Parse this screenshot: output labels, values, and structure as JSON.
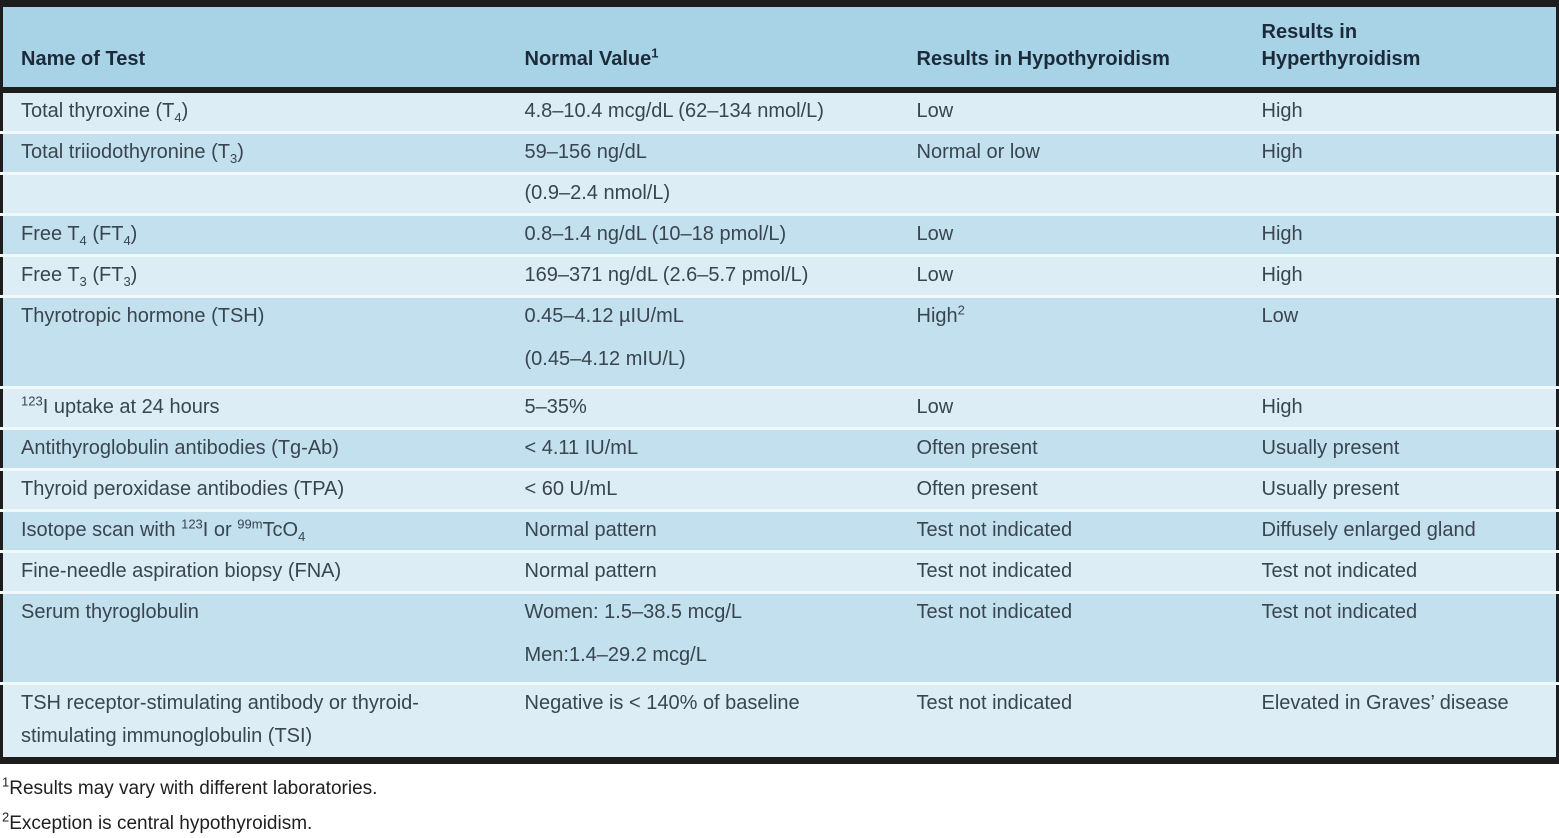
{
  "colors": {
    "header_bg": "#a8d2e6",
    "row_dark": "#c3e0ef",
    "row_light": "#dcedf6",
    "rule_black": "#1d1d1d",
    "row_separator": "#f2f9fc",
    "header_text": "#1c2b3a",
    "body_text": "#39454f"
  },
  "table": {
    "columns": [
      [
        "Name of Test"
      ],
      [
        "Normal Value^{1}"
      ],
      [
        "Results in Hypothyroidism"
      ],
      [
        "Results in",
        "Hyperthyroidism"
      ]
    ],
    "rows": [
      {
        "shade": "light",
        "tall": false,
        "cells": [
          [
            "Total thyroxine (T_{4})"
          ],
          [
            "4.8–10.4 mcg/dL (62–134 nmol/L)"
          ],
          [
            "Low"
          ],
          [
            "High"
          ]
        ]
      },
      {
        "shade": "dark",
        "tall": false,
        "cells": [
          [
            "Total triiodothyronine (T_{3})"
          ],
          [
            "59–156 ng/dL"
          ],
          [
            "Normal or low"
          ],
          [
            "High"
          ]
        ]
      },
      {
        "shade": "light",
        "tall": false,
        "cells": [
          [
            ""
          ],
          [
            "(0.9–2.4 nmol/L)"
          ],
          [
            ""
          ],
          [
            ""
          ]
        ]
      },
      {
        "shade": "dark",
        "tall": false,
        "cells": [
          [
            "Free T_{4} (FT_{4})"
          ],
          [
            "0.8–1.4 ng/dL (10–18 pmol/L)"
          ],
          [
            "Low"
          ],
          [
            "High"
          ]
        ]
      },
      {
        "shade": "light",
        "tall": false,
        "cells": [
          [
            "Free T_{3} (FT_{3})"
          ],
          [
            "169–371 ng/dL (2.6–5.7 pmol/L)"
          ],
          [
            "Low"
          ],
          [
            "High"
          ]
        ]
      },
      {
        "shade": "dark",
        "tall": true,
        "cells": [
          [
            "Thyrotropic hormone (TSH)"
          ],
          [
            "0.45–4.12 µIU/mL",
            "(0.45–4.12 mIU/L)"
          ],
          [
            "High^{2}"
          ],
          [
            "Low"
          ]
        ]
      },
      {
        "shade": "light",
        "tall": false,
        "cells": [
          [
            "^{123}I uptake at 24 hours"
          ],
          [
            "5–35%"
          ],
          [
            "Low"
          ],
          [
            "High"
          ]
        ]
      },
      {
        "shade": "dark",
        "tall": false,
        "cells": [
          [
            "Antithyroglobulin antibodies (Tg-Ab)"
          ],
          [
            "< 4.11 IU/mL"
          ],
          [
            "Often present"
          ],
          [
            "Usually present"
          ]
        ]
      },
      {
        "shade": "light",
        "tall": false,
        "cells": [
          [
            "Thyroid peroxidase antibodies (TPA)"
          ],
          [
            "< 60 U/mL"
          ],
          [
            "Often present"
          ],
          [
            "Usually present"
          ]
        ]
      },
      {
        "shade": "dark",
        "tall": false,
        "cells": [
          [
            "Isotope scan with ^{123}I or ^{99m}TcO_{4}"
          ],
          [
            "Normal pattern"
          ],
          [
            "Test not indicated"
          ],
          [
            "Diffusely enlarged gland"
          ]
        ]
      },
      {
        "shade": "light",
        "tall": false,
        "cells": [
          [
            "Fine-needle aspiration biopsy (FNA)"
          ],
          [
            "Normal pattern"
          ],
          [
            "Test not indicated"
          ],
          [
            "Test not indicated"
          ]
        ]
      },
      {
        "shade": "dark",
        "tall": true,
        "cells": [
          [
            "Serum thyroglobulin"
          ],
          [
            "Women: 1.5–38.5 mcg/L",
            "Men:1.4–29.2 mcg/L"
          ],
          [
            "Test not indicated"
          ],
          [
            "Test not indicated"
          ]
        ]
      },
      {
        "shade": "light",
        "tall": false,
        "cells": [
          [
            "TSH receptor-stimulating antibody or thyroid-",
            "stimulating immunoglobulin (TSI)"
          ],
          [
            "Negative is < 140% of baseline"
          ],
          [
            "Test not indicated"
          ],
          [
            "Elevated in Graves’ disease"
          ]
        ]
      }
    ]
  },
  "footnotes": [
    "^{1}Results may vary with different laboratories.",
    "^{2}Exception is central hypothyroidism."
  ]
}
